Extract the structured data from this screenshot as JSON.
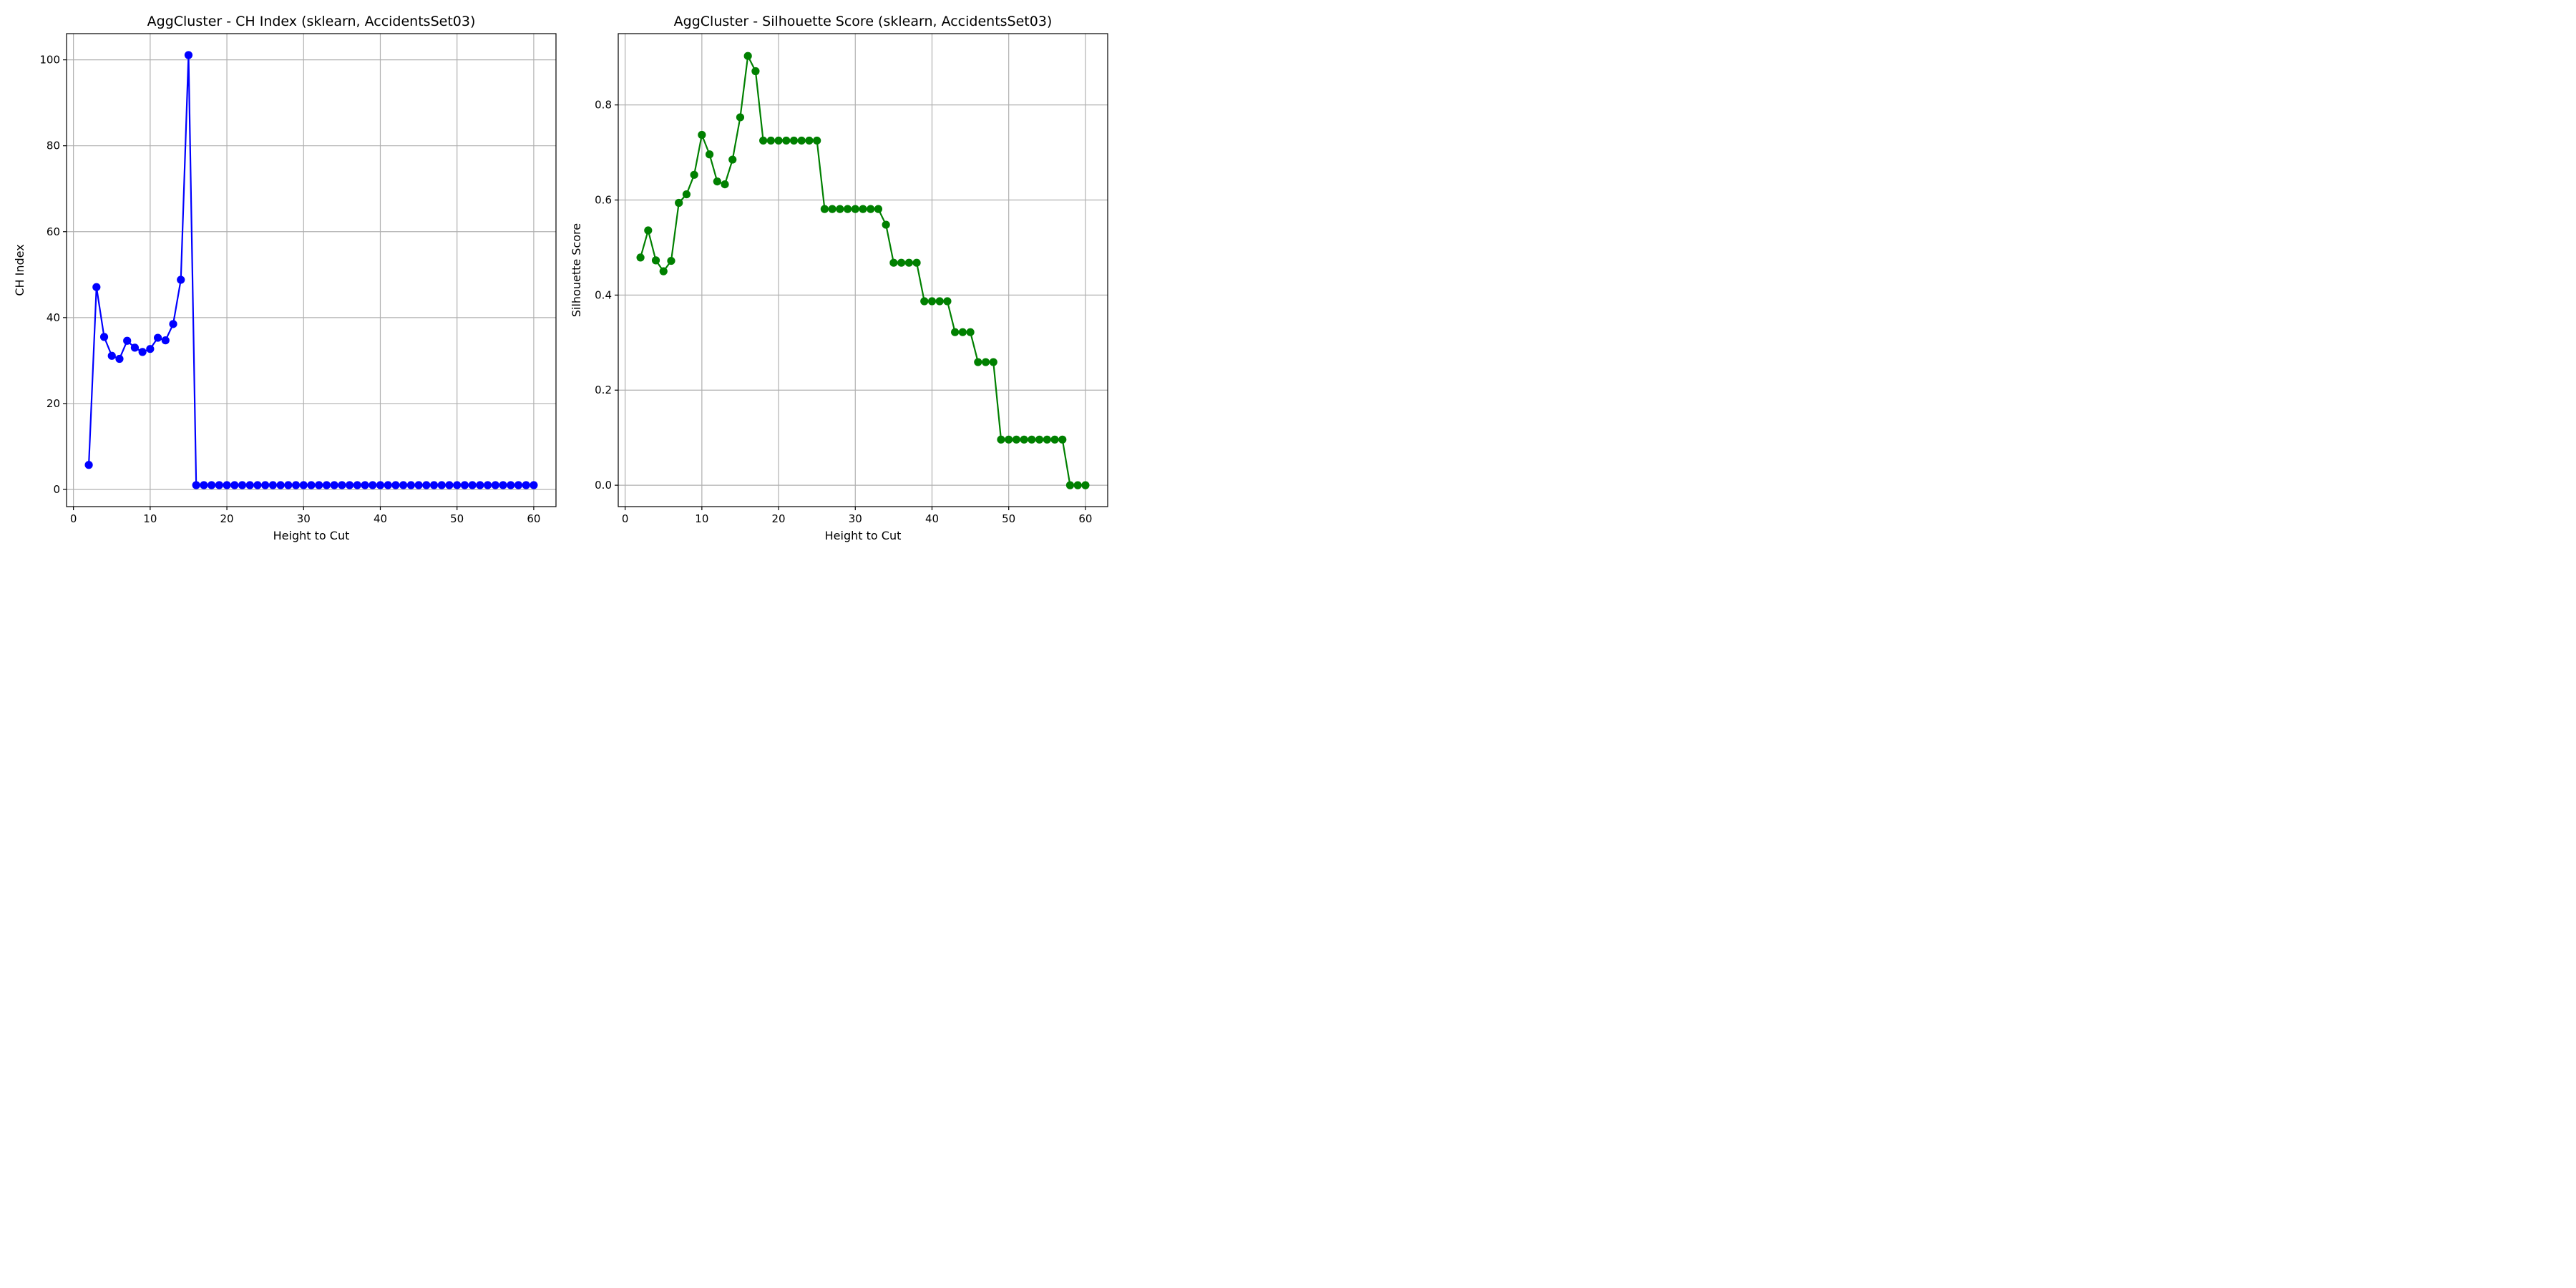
{
  "chart_data": [
    {
      "type": "line",
      "title": "AggCluster - CH Index (sklearn, AccidentsSet03)",
      "xlabel": "Height to Cut",
      "ylabel": "CH Index",
      "xlim": [
        -0.9,
        62.9
      ],
      "ylim": [
        -4.0,
        106.1
      ],
      "xticks": [
        0,
        10,
        20,
        30,
        40,
        50,
        60
      ],
      "yticks": [
        0,
        20,
        40,
        60,
        80,
        100
      ],
      "grid": true,
      "color": "#0000ff",
      "marker": "circle",
      "x": [
        2,
        3,
        4,
        5,
        6,
        7,
        8,
        9,
        10,
        11,
        12,
        13,
        14,
        15,
        16,
        17,
        18,
        19,
        20,
        21,
        22,
        23,
        24,
        25,
        26,
        27,
        28,
        29,
        30,
        31,
        32,
        33,
        34,
        35,
        36,
        37,
        38,
        39,
        40,
        41,
        42,
        43,
        44,
        45,
        46,
        47,
        48,
        49,
        50,
        51,
        52,
        53,
        54,
        55,
        56,
        57,
        58,
        59,
        60
      ],
      "y": [
        5.7,
        47.1,
        35.5,
        31.1,
        30.4,
        34.6,
        33.0,
        32.0,
        32.7,
        35.3,
        34.7,
        38.5,
        48.8,
        101.1,
        1.0,
        1.0,
        1.0,
        1.0,
        1.0,
        1.0,
        1.0,
        1.0,
        1.0,
        1.0,
        1.0,
        1.0,
        1.0,
        1.0,
        1.0,
        1.0,
        1.0,
        1.0,
        1.0,
        1.0,
        1.0,
        1.0,
        1.0,
        1.0,
        1.0,
        1.0,
        1.0,
        1.0,
        1.0,
        1.0,
        1.0,
        1.0,
        1.0,
        1.0,
        1.0,
        1.0,
        1.0,
        1.0,
        1.0,
        1.0,
        1.0,
        1.0,
        1.0,
        1.0,
        1.0
      ]
    },
    {
      "type": "line",
      "title": "AggCluster - Silhouette Score (sklearn, AccidentsSet03)",
      "xlabel": "Height to Cut",
      "ylabel": "Silhouette Score",
      "xlim": [
        -0.9,
        62.9
      ],
      "ylim": [
        -0.045,
        0.95
      ],
      "xticks": [
        0,
        10,
        20,
        30,
        40,
        50,
        60
      ],
      "yticks": [
        0.0,
        0.2,
        0.4,
        0.6,
        0.8
      ],
      "grid": true,
      "color": "#008000",
      "marker": "circle",
      "x": [
        2,
        3,
        4,
        5,
        6,
        7,
        8,
        9,
        10,
        11,
        12,
        13,
        14,
        15,
        16,
        17,
        18,
        19,
        20,
        21,
        22,
        23,
        24,
        25,
        26,
        27,
        28,
        29,
        30,
        31,
        32,
        33,
        34,
        35,
        36,
        37,
        38,
        39,
        40,
        41,
        42,
        43,
        44,
        45,
        46,
        47,
        48,
        49,
        50,
        51,
        52,
        53,
        54,
        55,
        56,
        57,
        58,
        59,
        60
      ],
      "y": [
        0.479,
        0.536,
        0.473,
        0.45,
        0.472,
        0.594,
        0.612,
        0.653,
        0.737,
        0.696,
        0.639,
        0.633,
        0.685,
        0.774,
        0.903,
        0.871,
        0.725,
        0.725,
        0.725,
        0.725,
        0.725,
        0.725,
        0.725,
        0.725,
        0.581,
        0.581,
        0.581,
        0.581,
        0.581,
        0.581,
        0.581,
        0.581,
        0.548,
        0.468,
        0.468,
        0.468,
        0.468,
        0.387,
        0.387,
        0.387,
        0.387,
        0.322,
        0.322,
        0.322,
        0.259,
        0.259,
        0.259,
        0.096,
        0.096,
        0.096,
        0.096,
        0.096,
        0.096,
        0.096,
        0.096,
        0.096,
        0.0,
        0.0,
        0.0
      ]
    }
  ]
}
